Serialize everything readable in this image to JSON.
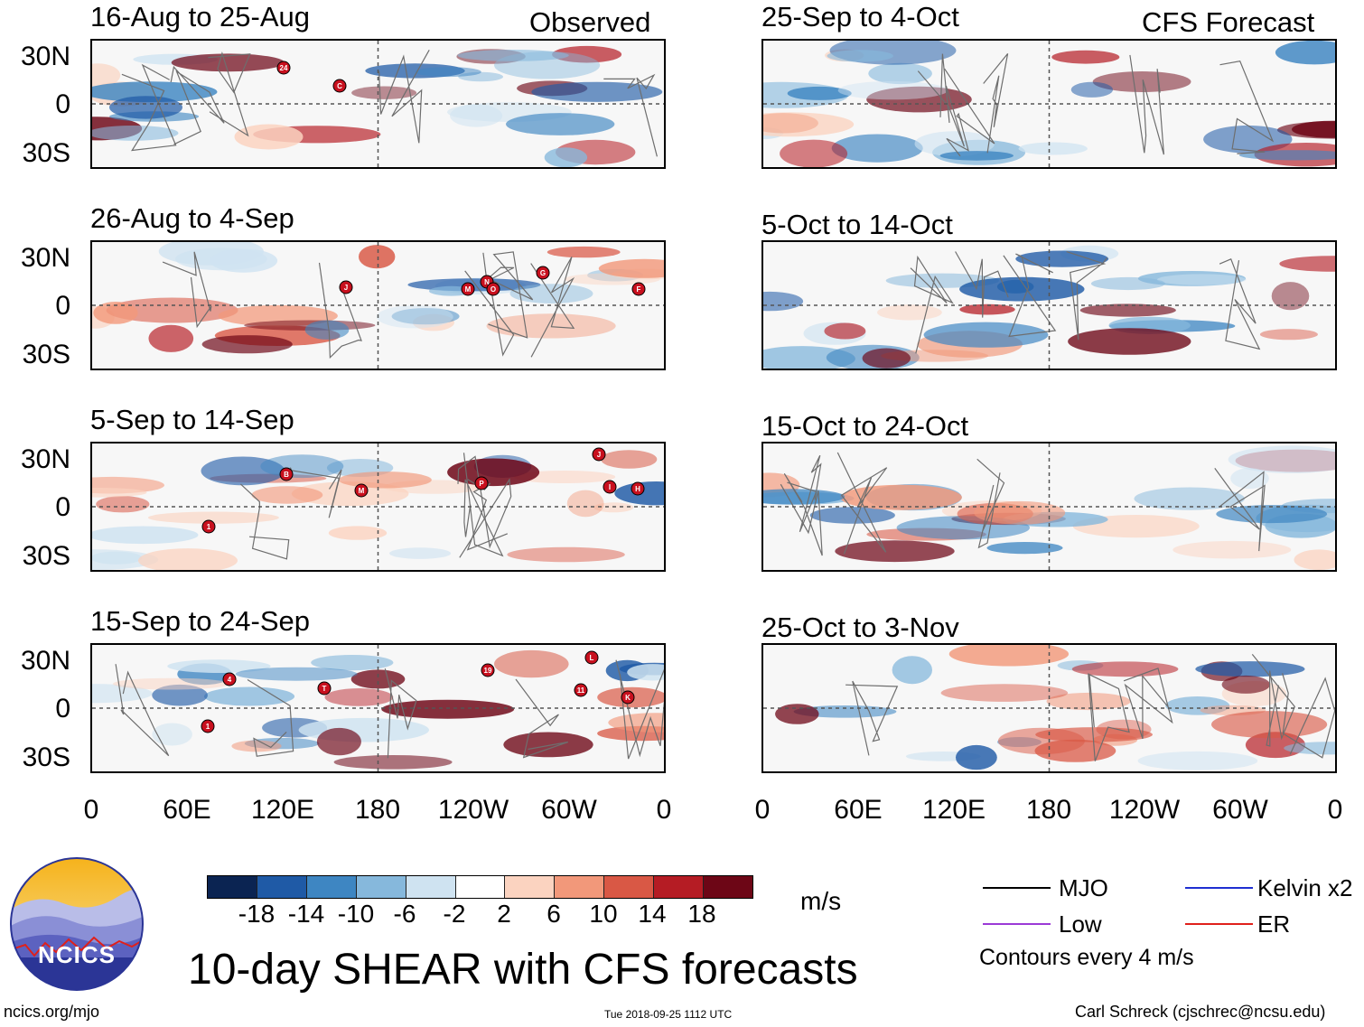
{
  "figure_title": "10-day SHEAR with CFS forecasts",
  "columns": {
    "observed_label": "Observed",
    "forecast_label": "CFS Forecast"
  },
  "lat_labels": [
    "30N",
    "0",
    "30S"
  ],
  "lon_labels": [
    "0",
    "60E",
    "120E",
    "180",
    "120W",
    "60W",
    "0"
  ],
  "observed_panels": [
    {
      "period": "16-Aug to 25-Aug",
      "storms": [
        "24",
        "C"
      ]
    },
    {
      "period": "26-Aug to 4-Sep",
      "storms": [
        "J",
        "M",
        "N",
        "O",
        "G",
        "F"
      ]
    },
    {
      "period": "5-Sep to 14-Sep",
      "storms": [
        "1",
        "B",
        "M",
        "P",
        "J",
        "I",
        "H"
      ]
    },
    {
      "period": "15-Sep to 24-Sep",
      "storms": [
        "1",
        "4",
        "T",
        "19",
        "L",
        "11",
        "K"
      ]
    }
  ],
  "forecast_panels": [
    {
      "period": "25-Sep to 4-Oct"
    },
    {
      "period": "5-Oct to 14-Oct"
    },
    {
      "period": "15-Oct to 24-Oct"
    },
    {
      "period": "25-Oct to 3-Nov"
    }
  ],
  "colorbar": {
    "ticks": [
      "-18",
      "-14",
      "-10",
      "-6",
      "-2",
      "2",
      "6",
      "10",
      "14",
      "18"
    ],
    "units": "m/s",
    "colors": [
      "#0b2452",
      "#1f5aa6",
      "#3e86c2",
      "#86b8dc",
      "#cfe3f1",
      "#ffffff",
      "#fbd3c0",
      "#f2987a",
      "#d95845",
      "#b51c24",
      "#6d0616"
    ]
  },
  "legend": {
    "mjo": "MJO",
    "low": "Low",
    "kelvin": "Kelvin x2",
    "er": "ER",
    "contours_note": "Contours every 4 m/s",
    "colors": {
      "mjo": "#000000",
      "low": "#9b3ad6",
      "kelvin": "#1f2fd1",
      "er": "#e0201b"
    }
  },
  "logo_text": "NCICS",
  "footer": {
    "website": "ncics.org/mjo",
    "timestamp": "Tue 2018-09-25 1112 UTC",
    "credit": "Carl Schreck (cjschrec@ncsu.edu)"
  }
}
